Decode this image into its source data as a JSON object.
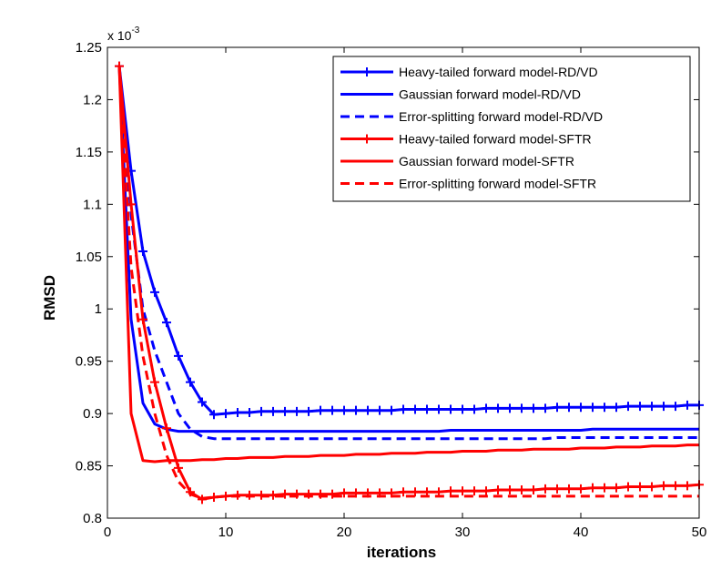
{
  "chart_data": {
    "type": "line",
    "title": "",
    "xlabel": "iterations",
    "ylabel": "RMSD",
    "y_multiplier": "x 10",
    "y_multiplier_exponent": "-3",
    "xlim": [
      0,
      50
    ],
    "ylim": [
      0.8,
      1.25
    ],
    "xticks": [
      0,
      10,
      20,
      30,
      40,
      50
    ],
    "xtick_labels": [
      "0",
      "10",
      "20",
      "30",
      "40",
      "50"
    ],
    "yticks": [
      0.8,
      0.85,
      0.9,
      0.95,
      1.0,
      1.05,
      1.1,
      1.15,
      1.2,
      1.25
    ],
    "ytick_labels": [
      "0.8",
      "0.85",
      "0.9",
      "0.95",
      "1",
      "1.05",
      "1.1",
      "1.15",
      "1.2",
      "1.25"
    ],
    "grid": false,
    "legend_position": "top-right",
    "x": [
      1,
      2,
      3,
      4,
      5,
      6,
      7,
      8,
      9,
      10,
      11,
      12,
      13,
      14,
      15,
      16,
      17,
      18,
      19,
      20,
      21,
      22,
      23,
      24,
      25,
      26,
      27,
      28,
      29,
      30,
      31,
      32,
      33,
      34,
      35,
      36,
      37,
      38,
      39,
      40,
      41,
      42,
      43,
      44,
      45,
      46,
      47,
      48,
      49,
      50
    ],
    "series": [
      {
        "name": "Heavy-tailed forward model-RD/VD",
        "color": "#0000ff",
        "linestyle": "solid",
        "marker": "+",
        "values": [
          1.232,
          1.132,
          1.055,
          1.016,
          0.987,
          0.955,
          0.93,
          0.911,
          0.899,
          0.9,
          0.901,
          0.901,
          0.902,
          0.902,
          0.902,
          0.902,
          0.902,
          0.903,
          0.903,
          0.903,
          0.903,
          0.903,
          0.903,
          0.903,
          0.904,
          0.904,
          0.904,
          0.904,
          0.904,
          0.904,
          0.904,
          0.905,
          0.905,
          0.905,
          0.905,
          0.905,
          0.905,
          0.906,
          0.906,
          0.906,
          0.906,
          0.906,
          0.906,
          0.907,
          0.907,
          0.907,
          0.907,
          0.907,
          0.908,
          0.908
        ]
      },
      {
        "name": "Gaussian forward model-RD/VD",
        "color": "#0000ff",
        "linestyle": "solid",
        "marker": "",
        "values": [
          1.232,
          0.99,
          0.91,
          0.89,
          0.885,
          0.883,
          0.883,
          0.883,
          0.883,
          0.883,
          0.883,
          0.883,
          0.883,
          0.883,
          0.883,
          0.883,
          0.883,
          0.883,
          0.883,
          0.883,
          0.883,
          0.883,
          0.883,
          0.883,
          0.883,
          0.883,
          0.883,
          0.883,
          0.884,
          0.884,
          0.884,
          0.884,
          0.884,
          0.884,
          0.884,
          0.884,
          0.884,
          0.884,
          0.884,
          0.884,
          0.885,
          0.885,
          0.885,
          0.885,
          0.885,
          0.885,
          0.885,
          0.885,
          0.885,
          0.885
        ]
      },
      {
        "name": "Error-splitting forward model-RD/VD",
        "color": "#0000ff",
        "linestyle": "dashed",
        "marker": "",
        "values": [
          1.232,
          1.09,
          1.0,
          0.96,
          0.93,
          0.9,
          0.885,
          0.878,
          0.876,
          0.876,
          0.876,
          0.876,
          0.876,
          0.876,
          0.876,
          0.876,
          0.876,
          0.876,
          0.876,
          0.876,
          0.876,
          0.876,
          0.876,
          0.876,
          0.876,
          0.876,
          0.876,
          0.876,
          0.876,
          0.876,
          0.876,
          0.876,
          0.876,
          0.876,
          0.876,
          0.876,
          0.876,
          0.877,
          0.877,
          0.877,
          0.877,
          0.877,
          0.877,
          0.877,
          0.877,
          0.877,
          0.877,
          0.877,
          0.877,
          0.877
        ]
      },
      {
        "name": "Heavy-tailed forward model-SFTR",
        "color": "#ff0000",
        "linestyle": "solid",
        "marker": "+",
        "values": [
          1.232,
          1.1,
          0.99,
          0.93,
          0.886,
          0.848,
          0.825,
          0.818,
          0.82,
          0.821,
          0.822,
          0.822,
          0.822,
          0.822,
          0.823,
          0.823,
          0.823,
          0.823,
          0.823,
          0.824,
          0.824,
          0.824,
          0.824,
          0.824,
          0.825,
          0.825,
          0.825,
          0.825,
          0.826,
          0.826,
          0.826,
          0.826,
          0.827,
          0.827,
          0.827,
          0.827,
          0.828,
          0.828,
          0.828,
          0.828,
          0.829,
          0.829,
          0.829,
          0.83,
          0.83,
          0.83,
          0.831,
          0.831,
          0.831,
          0.832
        ]
      },
      {
        "name": "Gaussian forward model-SFTR",
        "color": "#ff0000",
        "linestyle": "solid",
        "marker": "",
        "values": [
          1.232,
          0.9,
          0.855,
          0.854,
          0.855,
          0.855,
          0.855,
          0.856,
          0.856,
          0.857,
          0.857,
          0.858,
          0.858,
          0.858,
          0.859,
          0.859,
          0.859,
          0.86,
          0.86,
          0.86,
          0.861,
          0.861,
          0.861,
          0.862,
          0.862,
          0.862,
          0.863,
          0.863,
          0.863,
          0.864,
          0.864,
          0.864,
          0.865,
          0.865,
          0.865,
          0.866,
          0.866,
          0.866,
          0.866,
          0.867,
          0.867,
          0.867,
          0.868,
          0.868,
          0.868,
          0.869,
          0.869,
          0.869,
          0.87,
          0.87
        ]
      },
      {
        "name": "Error-splitting forward model-SFTR",
        "color": "#ff0000",
        "linestyle": "dashed",
        "marker": "",
        "values": [
          1.232,
          1.04,
          0.955,
          0.9,
          0.86,
          0.835,
          0.823,
          0.819,
          0.82,
          0.821,
          0.821,
          0.821,
          0.821,
          0.821,
          0.821,
          0.821,
          0.821,
          0.821,
          0.821,
          0.821,
          0.821,
          0.821,
          0.821,
          0.821,
          0.821,
          0.821,
          0.821,
          0.821,
          0.821,
          0.821,
          0.821,
          0.821,
          0.821,
          0.821,
          0.821,
          0.821,
          0.821,
          0.821,
          0.821,
          0.821,
          0.821,
          0.821,
          0.821,
          0.821,
          0.821,
          0.821,
          0.821,
          0.821,
          0.821,
          0.821
        ]
      }
    ]
  }
}
